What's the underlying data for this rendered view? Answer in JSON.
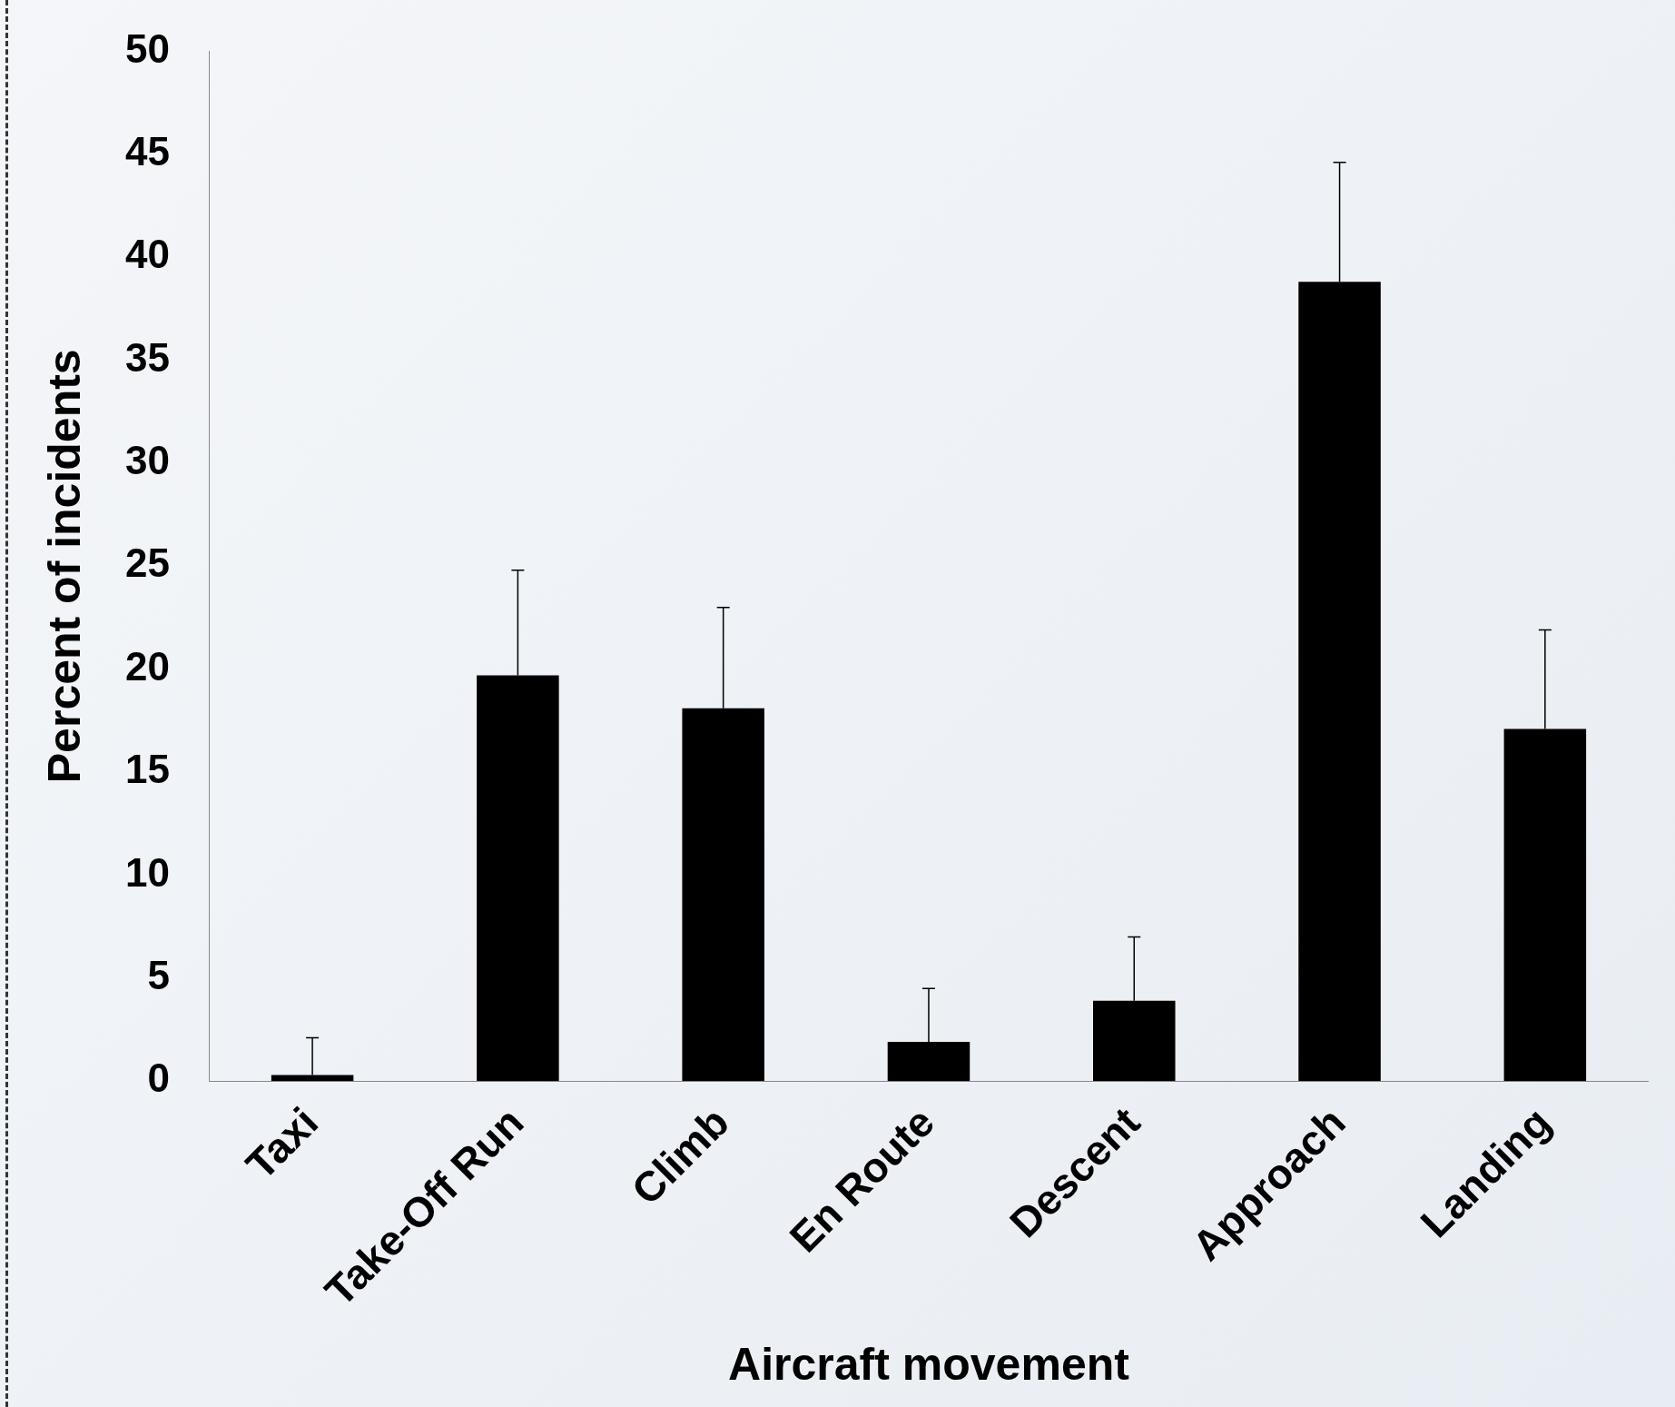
{
  "chart_data": {
    "type": "bar",
    "xlabel": "Aircraft movement",
    "ylabel": "Percent of incidents",
    "categories": [
      "Taxi",
      "Take-Off Run",
      "Climb",
      "En Route",
      "Descent",
      "Approach",
      "Landing"
    ],
    "values": [
      0.3,
      19.7,
      18.1,
      1.9,
      3.9,
      38.8,
      17.1
    ],
    "errors": [
      [
        0.3,
        2.1
      ],
      [
        19.7,
        24.8
      ],
      [
        18.1,
        23.0
      ],
      [
        1.9,
        4.5
      ],
      [
        3.9,
        7.0
      ],
      [
        38.8,
        44.6
      ],
      [
        17.1,
        21.9
      ]
    ],
    "color": "#000000",
    "ylim": [
      0,
      50
    ],
    "yticks": [
      0,
      5,
      10,
      15,
      20,
      25,
      30,
      35,
      40,
      45,
      50
    ],
    "grid": false,
    "legend": false
  }
}
